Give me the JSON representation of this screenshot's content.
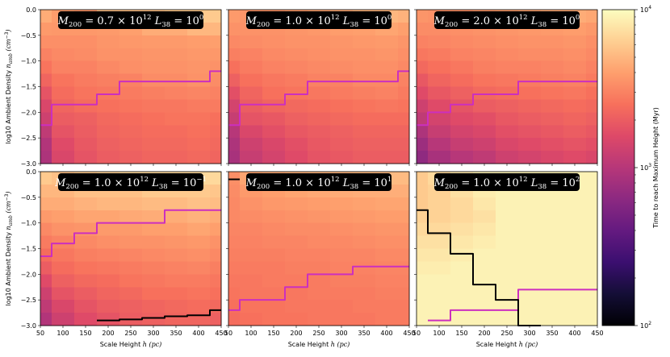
{
  "chart_data": {
    "type": "heatmap",
    "x_edges": [
      50,
      75,
      125,
      175,
      225,
      275,
      325,
      375,
      425,
      450
    ],
    "y_edges": [
      -3.0,
      -2.75,
      -2.5,
      -2.25,
      -2.0,
      -1.75,
      -1.5,
      -1.25,
      -1.0,
      -0.75,
      -0.5,
      -0.25,
      0.0
    ],
    "xlim": [
      50,
      450
    ],
    "ylim": [
      -3.0,
      0.0
    ],
    "xticks": [
      50,
      100,
      150,
      200,
      250,
      300,
      350,
      400,
      450
    ],
    "yticks": [
      0.0,
      -0.5,
      -1.0,
      -1.5,
      -2.0,
      -2.5,
      -3.0
    ],
    "xtick_labels": [
      "50",
      "100",
      "150",
      "200",
      "250",
      "300",
      "350",
      "400",
      "450"
    ],
    "ytick_labels": [
      "0.0",
      "−0.5",
      "−1.0",
      "−1.5",
      "−2.0",
      "−2.5",
      "−3.0"
    ],
    "xlabel": "Scale Height",
    "xlabel_sym": "h (pc)",
    "ylabel": "log10 Ambient Density",
    "ylabel_sym": "n",
    "ylabel_sub": "amb",
    "ylabel_unit": "(cm",
    "ylabel_unit_sup": "−3",
    "ylabel_unit_close": ")",
    "colorbar": {
      "label": "Time to reach Maximum Height (Myr)",
      "scale": "log",
      "min": 100,
      "max": 10000,
      "ticks": [
        {
          "value": 10000,
          "base": "10",
          "exp": "4"
        },
        {
          "value": 1000,
          "base": "10",
          "exp": "3"
        },
        {
          "value": 100,
          "base": "10",
          "exp": "2"
        }
      ]
    },
    "panels": [
      {
        "title_m": "M",
        "title_m_sub": "200",
        "title_m_val": " = 0.7 × 10",
        "title_m_exp": "12",
        "title_l": "L",
        "title_l_sub": "38",
        "title_l_val": " = 10",
        "title_l_exp": "0",
        "grid": [
          [
            4500,
            3900,
            3700,
            5500,
            5500,
            5500,
            6000,
            6000,
            6000
          ],
          [
            3800,
            3700,
            3700,
            3800,
            4000,
            4500,
            4500,
            5000,
            5000
          ],
          [
            3400,
            3400,
            3400,
            3600,
            3700,
            3800,
            3800,
            3900,
            4000
          ],
          [
            3000,
            3200,
            3300,
            3500,
            3500,
            3600,
            3600,
            3700,
            3700
          ],
          [
            2600,
            3000,
            3000,
            3200,
            3400,
            3500,
            3500,
            3600,
            3500
          ],
          [
            2200,
            2600,
            2800,
            2900,
            3000,
            3300,
            3300,
            3500,
            3300
          ],
          [
            1800,
            2400,
            2600,
            2700,
            2800,
            2900,
            3000,
            3100,
            3000
          ],
          [
            1500,
            2200,
            2400,
            2500,
            2600,
            2700,
            2700,
            2800,
            2800
          ],
          [
            1300,
            2000,
            2100,
            2300,
            2400,
            2500,
            2600,
            2600,
            2500
          ],
          [
            1100,
            1800,
            2000,
            2200,
            2300,
            2400,
            2400,
            2500,
            2400
          ],
          [
            950,
            1600,
            1900,
            2100,
            2200,
            2300,
            2300,
            2400,
            2300
          ],
          [
            900,
            1500,
            1800,
            2000,
            2100,
            2200,
            2200,
            2300,
            2200
          ]
        ],
        "contour_magenta": [
          -2.25,
          -1.85,
          -1.85,
          -1.65,
          -1.4,
          -1.4,
          -1.4,
          -1.4,
          -1.2
        ],
        "contour_black": null
      },
      {
        "title_m": "M",
        "title_m_sub": "200",
        "title_m_val": " = 1.0 × 10",
        "title_m_exp": "12",
        "title_l": "L",
        "title_l_sub": "38",
        "title_l_val": " = 10",
        "title_l_exp": "0",
        "grid": [
          [
            3800,
            3600,
            3600,
            3900,
            4200,
            4500,
            5000,
            5000,
            4800
          ],
          [
            3500,
            3500,
            3500,
            3600,
            3700,
            3900,
            4000,
            4200,
            4000
          ],
          [
            3200,
            3300,
            3400,
            3500,
            3500,
            3600,
            3700,
            3800,
            3600
          ],
          [
            2900,
            3000,
            3200,
            3300,
            3400,
            3500,
            3500,
            3600,
            3400
          ],
          [
            2500,
            2800,
            3000,
            3100,
            3200,
            3300,
            3400,
            3400,
            3200
          ],
          [
            2100,
            2500,
            2700,
            2800,
            3000,
            3000,
            3200,
            3200,
            3000
          ],
          [
            1700,
            2200,
            2500,
            2600,
            2700,
            2800,
            2900,
            3000,
            2800
          ],
          [
            1400,
            2000,
            2200,
            2300,
            2400,
            2500,
            2600,
            2700,
            2600
          ],
          [
            1200,
            1800,
            1900,
            2100,
            2200,
            2300,
            2400,
            2400,
            2400
          ],
          [
            1000,
            1500,
            1700,
            1900,
            2000,
            2100,
            2200,
            2200,
            2200
          ],
          [
            900,
            1300,
            1500,
            1700,
            1900,
            2000,
            2100,
            2100,
            2100
          ],
          [
            850,
            1200,
            1400,
            1600,
            1800,
            1900,
            2000,
            2000,
            2000
          ]
        ],
        "contour_magenta": [
          -2.25,
          -1.85,
          -1.85,
          -1.65,
          -1.4,
          -1.4,
          -1.4,
          -1.4,
          -1.2
        ],
        "contour_black": null
      },
      {
        "title_m": "M",
        "title_m_sub": "200",
        "title_m_val": " = 2.0 × 10",
        "title_m_exp": "12",
        "title_l": "L",
        "title_l_sub": "38",
        "title_l_val": " = 10",
        "title_l_exp": "0",
        "grid": [
          [
            3600,
            3500,
            3500,
            3800,
            4000,
            4200,
            4500,
            4500,
            4300
          ],
          [
            3300,
            3300,
            3400,
            3500,
            3600,
            3700,
            3800,
            3900,
            3700
          ],
          [
            3000,
            3100,
            3200,
            3300,
            3400,
            3500,
            3500,
            3600,
            3400
          ],
          [
            2700,
            2800,
            3000,
            3100,
            3200,
            3300,
            3300,
            3400,
            3200
          ],
          [
            2300,
            2500,
            2700,
            2900,
            3000,
            3000,
            3100,
            3200,
            3000
          ],
          [
            1900,
            2200,
            2400,
            2600,
            2700,
            2800,
            2900,
            3000,
            2800
          ],
          [
            1600,
            1900,
            2100,
            2300,
            2400,
            2500,
            2600,
            2700,
            2500
          ],
          [
            1300,
            1600,
            1800,
            2000,
            2100,
            2200,
            2300,
            2400,
            2300
          ],
          [
            1100,
            1400,
            1600,
            1700,
            1900,
            2000,
            2100,
            2200,
            2100
          ],
          [
            900,
            1200,
            1400,
            1500,
            1700,
            1800,
            1900,
            2000,
            1900
          ],
          [
            750,
            1000,
            1200,
            1300,
            1500,
            1600,
            1700,
            1800,
            1700
          ],
          [
            650,
            850,
            1000,
            1100,
            1300,
            1400,
            1500,
            1600,
            1500
          ]
        ],
        "contour_magenta": [
          -2.25,
          -2.0,
          -1.85,
          -1.65,
          -1.65,
          -1.4,
          -1.4,
          -1.4,
          -1.4
        ],
        "contour_black": null
      },
      {
        "title_m": "M",
        "title_m_sub": "200",
        "title_m_val": " = 1.0 × 10",
        "title_m_exp": "12",
        "title_l": "L",
        "title_l_sub": "38",
        "title_l_val": " = 10",
        "title_l_exp": "−1",
        "grid": [
          [
            6000,
            5500,
            6000,
            6500,
            7000,
            7000,
            7000,
            7000,
            7000
          ],
          [
            5000,
            5000,
            5500,
            5500,
            5500,
            6000,
            6000,
            6000,
            5800
          ],
          [
            4500,
            4500,
            4800,
            5000,
            5000,
            5200,
            5200,
            5500,
            5300
          ],
          [
            3800,
            4000,
            4200,
            4200,
            4400,
            4500,
            4500,
            4800,
            4500
          ],
          [
            3200,
            3500,
            3600,
            3800,
            3800,
            4000,
            4000,
            4200,
            4000
          ],
          [
            2800,
            3000,
            3200,
            3400,
            3500,
            3500,
            3600,
            3700,
            3500
          ],
          [
            2400,
            2700,
            2900,
            3000,
            3100,
            3200,
            3300,
            3400,
            3200
          ],
          [
            2000,
            2400,
            2600,
            2700,
            2800,
            2900,
            3000,
            3100,
            2900
          ],
          [
            1600,
            2100,
            2300,
            2400,
            2600,
            2700,
            2800,
            2800,
            2700
          ],
          [
            1300,
            1800,
            2000,
            2200,
            2300,
            2500,
            2500,
            2600,
            2500
          ],
          [
            1100,
            1500,
            1800,
            2000,
            2100,
            2200,
            2300,
            2400,
            2300
          ],
          [
            950,
            1300,
            1600,
            1800,
            2000,
            2100,
            2200,
            2200,
            2100
          ]
        ],
        "contour_magenta": [
          -1.65,
          -1.4,
          -1.2,
          -1.0,
          -1.0,
          -1.0,
          -0.75,
          -0.75,
          -0.75
        ],
        "contour_black": [
          null,
          null,
          null,
          -2.9,
          -2.88,
          -2.85,
          -2.82,
          -2.8,
          -2.7
        ]
      },
      {
        "title_m": "M",
        "title_m_sub": "200",
        "title_m_val": " = 1.0 × 10",
        "title_m_exp": "12",
        "title_l": "L",
        "title_l_sub": "38",
        "title_l_val": " = 10",
        "title_l_exp": "1",
        "grid": [
          [
            3400,
            4200,
            4500,
            4800,
            5000,
            5000,
            5200,
            5200,
            5200
          ],
          [
            3300,
            3800,
            4000,
            4200,
            4400,
            4500,
            4600,
            4600,
            4600
          ],
          [
            3200,
            3500,
            3700,
            3800,
            3900,
            4000,
            4100,
            4200,
            4200
          ],
          [
            3200,
            3300,
            3400,
            3500,
            3600,
            3700,
            3800,
            3900,
            3900
          ],
          [
            3100,
            3100,
            3200,
            3300,
            3300,
            3400,
            3500,
            3600,
            3600
          ],
          [
            3000,
            3000,
            3100,
            3100,
            3200,
            3200,
            3300,
            3400,
            3400
          ],
          [
            2900,
            2900,
            2900,
            3000,
            3000,
            3100,
            3100,
            3200,
            3200
          ],
          [
            2800,
            2800,
            2800,
            2900,
            2900,
            3000,
            3000,
            3100,
            3100
          ],
          [
            2700,
            2700,
            2800,
            2800,
            2800,
            2900,
            2900,
            3000,
            3000
          ],
          [
            2600,
            2700,
            2700,
            2700,
            2800,
            2800,
            2800,
            2900,
            2900
          ],
          [
            2500,
            2600,
            2600,
            2700,
            2700,
            2700,
            2800,
            2800,
            2800
          ],
          [
            2400,
            2500,
            2600,
            2600,
            2700,
            2700,
            2700,
            2800,
            2800
          ]
        ],
        "contour_magenta": [
          -2.7,
          -2.5,
          -2.5,
          -2.25,
          -2.0,
          -2.0,
          -1.85,
          -1.85,
          -1.85
        ],
        "contour_black": [
          -0.15,
          null,
          null,
          null,
          null,
          null,
          null,
          null,
          null
        ]
      },
      {
        "title_m": "M",
        "title_m_sub": "200",
        "title_m_val": " = 1.0 × 10",
        "title_m_exp": "12",
        "title_l": "L",
        "title_l_sub": "38",
        "title_l_val": " = 10",
        "title_l_exp": "2",
        "grid": [
          [
            6000,
            7000,
            8000,
            9000,
            9000,
            9000,
            9000,
            9000,
            9000
          ],
          [
            6000,
            6500,
            7500,
            8500,
            9000,
            9000,
            9000,
            9000,
            9000
          ],
          [
            6000,
            6500,
            7000,
            8000,
            9000,
            9000,
            9000,
            9000,
            9000
          ],
          [
            6500,
            6500,
            7000,
            7500,
            9000,
            9000,
            9000,
            9000,
            9000
          ],
          [
            7000,
            7000,
            7500,
            8000,
            9000,
            9000,
            9000,
            9000,
            9000
          ],
          [
            7500,
            7500,
            8000,
            8500,
            9000,
            9000,
            9000,
            9000,
            9000
          ],
          [
            8000,
            8000,
            8500,
            9000,
            9000,
            9000,
            9000,
            9000,
            9000
          ],
          [
            8500,
            8500,
            9000,
            9000,
            9000,
            9000,
            9000,
            9000,
            9000
          ],
          [
            9000,
            9000,
            9000,
            9000,
            9000,
            9000,
            9000,
            9000,
            9000
          ],
          [
            9000,
            9000,
            9000,
            9000,
            9000,
            9000,
            9000,
            9000,
            9000
          ],
          [
            9000,
            9000,
            9000,
            9000,
            9000,
            9000,
            9000,
            9000,
            9000
          ],
          [
            9000,
            9000,
            9000,
            9000,
            9000,
            9000,
            9000,
            9000,
            9000
          ]
        ],
        "contour_magenta": [
          null,
          -2.9,
          -2.7,
          -2.7,
          -2.7,
          -2.3,
          -2.3,
          -2.3,
          -2.3
        ],
        "contour_black": [
          -0.75,
          -1.2,
          -1.6,
          -2.2,
          -2.5,
          -3.0,
          null,
          null,
          null
        ]
      }
    ]
  },
  "colors": {
    "magenta_contour": "#cc2fbf",
    "black_contour": "#000000",
    "title_box": "#000000",
    "title_text": "#ffffff"
  }
}
